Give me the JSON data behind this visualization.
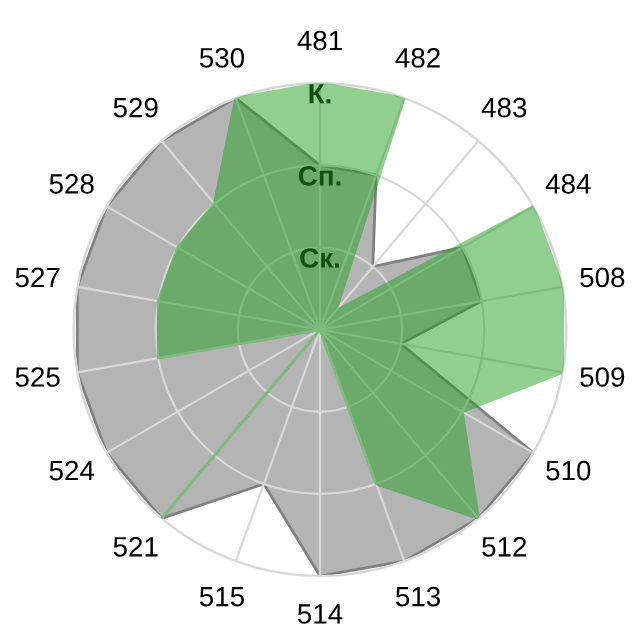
{
  "chart_data": {
    "type": "radar",
    "categories": [
      "481",
      "482",
      "483",
      "484",
      "508",
      "509",
      "510",
      "512",
      "513",
      "514",
      "515",
      "521",
      "524",
      "525",
      "527",
      "528",
      "529",
      "530"
    ],
    "series": [
      {
        "color": "#b4b4b4",
        "values": [
          2,
          2,
          1,
          2,
          2,
          1,
          3,
          3,
          3,
          3,
          2,
          3,
          3,
          3,
          3,
          3,
          3,
          3
        ]
      },
      {
        "color": "#22a022",
        "values": [
          3,
          3,
          0.3,
          3,
          3,
          3,
          2,
          3,
          2,
          0,
          0,
          3,
          0,
          2,
          2,
          2,
          2,
          3
        ]
      }
    ],
    "ylim": [
      0,
      3
    ],
    "yticks": [
      {
        "value": 1,
        "label": "Ск."
      },
      {
        "value": 2,
        "label": "Сп."
      },
      {
        "value": 3,
        "label": "К."
      }
    ],
    "grid": true
  }
}
